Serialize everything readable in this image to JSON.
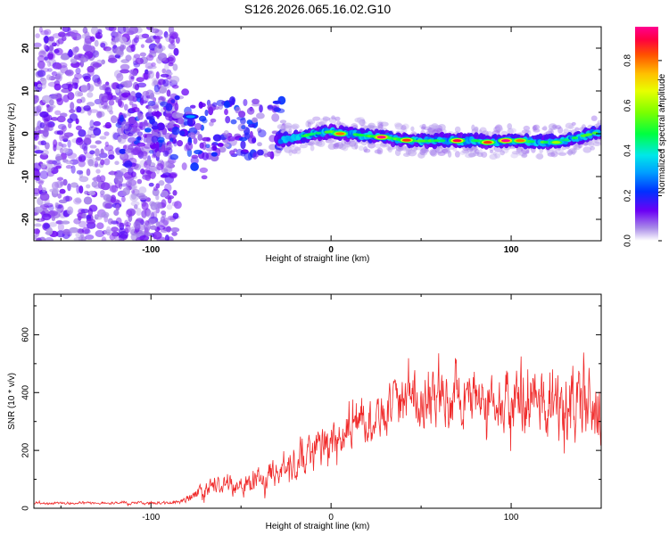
{
  "title": "S126.2026.065.16.02.G10",
  "chart_data": [
    {
      "type": "heatmap",
      "name": "spectrogram",
      "xlabel": "Height of straight line (km)",
      "ylabel": "Frequency (Hz)",
      "xlim": [
        -165,
        150
      ],
      "ylim": [
        -25,
        25
      ],
      "xticks": [
        -100,
        0,
        100
      ],
      "yticks": [
        -20,
        -10,
        0,
        10,
        20
      ],
      "colorbar": {
        "label": "Normalized spectral amplitude",
        "range": [
          0,
          0.95
        ],
        "ticks": [
          0.0,
          0.2,
          0.4,
          0.6,
          0.8
        ],
        "tick_labels": [
          "0.0",
          "0.2",
          "0.4",
          "0.6",
          "0.8"
        ]
      },
      "ridge": [
        {
          "x": -30,
          "y": -1.5
        },
        {
          "x": -20,
          "y": -1.0
        },
        {
          "x": -10,
          "y": 0.0
        },
        {
          "x": 0,
          "y": 0.5
        },
        {
          "x": 10,
          "y": 0.0
        },
        {
          "x": 20,
          "y": -0.5
        },
        {
          "x": 30,
          "y": -0.8
        },
        {
          "x": 40,
          "y": -1.5
        },
        {
          "x": 50,
          "y": -1.7
        },
        {
          "x": 60,
          "y": -1.6
        },
        {
          "x": 70,
          "y": -1.6
        },
        {
          "x": 80,
          "y": -1.6
        },
        {
          "x": 90,
          "y": -2.0
        },
        {
          "x": 100,
          "y": -1.6
        },
        {
          "x": 110,
          "y": -1.8
        },
        {
          "x": 120,
          "y": -2.0
        },
        {
          "x": 130,
          "y": -1.5
        },
        {
          "x": 140,
          "y": -0.5
        },
        {
          "x": 150,
          "y": 0.5
        }
      ],
      "peaks": [
        {
          "x": 5,
          "y": 0.0,
          "amplitude": 0.8
        },
        {
          "x": 28,
          "y": -0.8,
          "amplitude": 0.95
        },
        {
          "x": 42,
          "y": -1.5,
          "amplitude": 0.85
        },
        {
          "x": 70,
          "y": -1.6,
          "amplitude": 0.9
        },
        {
          "x": 87,
          "y": -2.0,
          "amplitude": 0.85
        },
        {
          "x": 97,
          "y": -1.6,
          "amplitude": 0.95
        },
        {
          "x": 105,
          "y": -1.6,
          "amplitude": 0.8
        },
        {
          "x": 125,
          "y": -2.0,
          "amplitude": 0.6
        },
        {
          "x": -78,
          "y": 4.0,
          "amplitude": 0.3
        }
      ]
    },
    {
      "type": "line",
      "name": "snr",
      "xlabel": "Height of straight line (km)",
      "ylabel": "SNR (10 * v/v)",
      "xlim": [
        -165,
        150
      ],
      "ylim": [
        0,
        740
      ],
      "xticks": [
        -100,
        0,
        100
      ],
      "yticks": [
        0,
        200,
        400,
        600
      ],
      "color": "#f02a2a",
      "envelope": [
        {
          "x": -165,
          "mean": 18,
          "spread": 6
        },
        {
          "x": -90,
          "mean": 18,
          "spread": 8
        },
        {
          "x": -80,
          "mean": 30,
          "spread": 20
        },
        {
          "x": -70,
          "mean": 70,
          "spread": 45
        },
        {
          "x": -50,
          "mean": 85,
          "spread": 55
        },
        {
          "x": -30,
          "mean": 120,
          "spread": 70
        },
        {
          "x": -15,
          "mean": 180,
          "spread": 110
        },
        {
          "x": 0,
          "mean": 230,
          "spread": 110
        },
        {
          "x": 20,
          "mean": 310,
          "spread": 110
        },
        {
          "x": 40,
          "mean": 360,
          "spread": 130
        },
        {
          "x": 60,
          "mean": 380,
          "spread": 150
        },
        {
          "x": 80,
          "mean": 390,
          "spread": 160
        },
        {
          "x": 100,
          "mean": 370,
          "spread": 180
        },
        {
          "x": 120,
          "mean": 360,
          "spread": 200
        },
        {
          "x": 150,
          "mean": 340,
          "spread": 210
        }
      ]
    }
  ]
}
